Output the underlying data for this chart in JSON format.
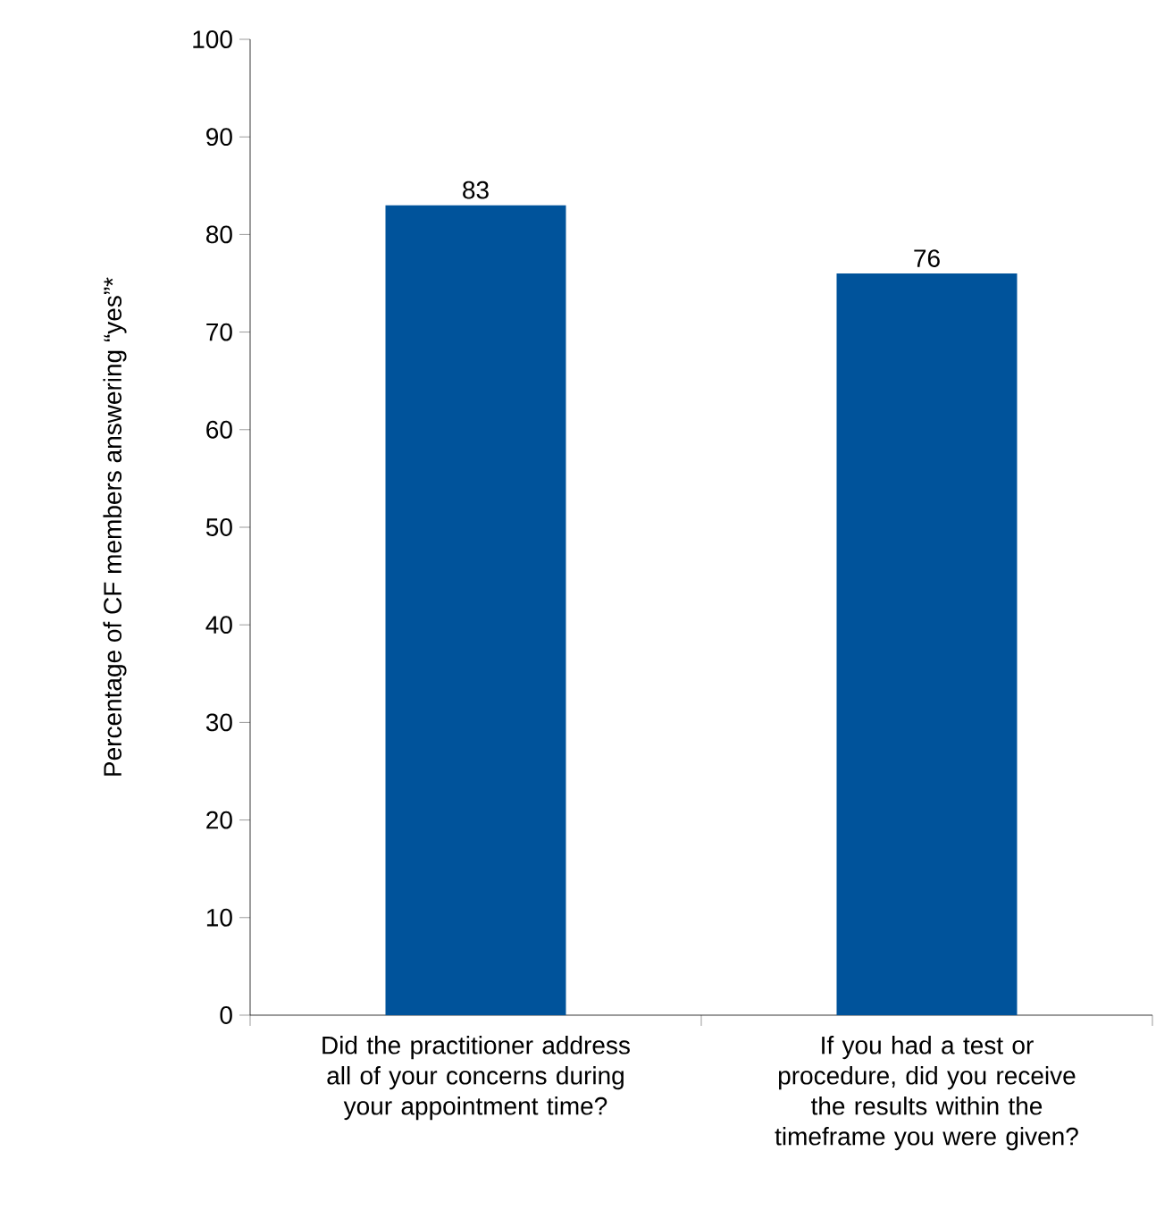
{
  "chart_data": {
    "type": "bar",
    "ylabel": "Percentage of CF members answering “yes”*",
    "categories": [
      "Did the practitioner address all of your concerns during your appointment time?",
      "If you had a test or procedure, did you receive the results within the timeframe you were given?"
    ],
    "values": [
      83,
      76
    ],
    "color": "#00539b",
    "ylim": [
      0,
      100
    ],
    "yticks": [
      0,
      10,
      20,
      30,
      40,
      50,
      60,
      70,
      80,
      90,
      100
    ],
    "data_labels": true
  }
}
